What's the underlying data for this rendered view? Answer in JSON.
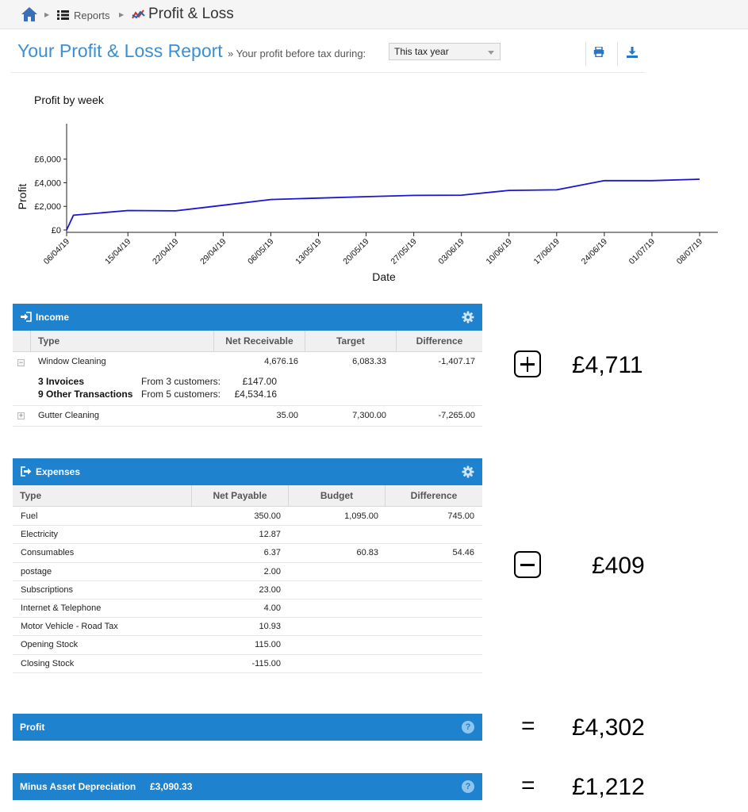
{
  "breadcrumb": {
    "home_icon": "home-icon",
    "reports_icon": "list-icon",
    "reports_label": "Reports",
    "page_icon": "chart-line-icon",
    "page_title": "Profit & Loss"
  },
  "header": {
    "title": "Your Profit & Loss Report",
    "subtitle": "» Your profit before tax during:",
    "period_select": "This tax year",
    "print_icon": "print-icon",
    "download_icon": "download-icon"
  },
  "chart_data": {
    "type": "line",
    "title": "Profit by week",
    "xlabel": "Date",
    "ylabel": "Profit",
    "ytick_labels": [
      "£0",
      "£2,000",
      "£4,000",
      "£6,000"
    ],
    "ylim": [
      -200,
      9000
    ],
    "grid": false,
    "categories": [
      "06/04/19",
      "15/04/19",
      "22/04/19",
      "29/04/19",
      "06/05/19",
      "13/05/19",
      "20/05/19",
      "27/05/19",
      "03/06/19",
      "10/06/19",
      "17/06/19",
      "24/06/19",
      "01/07/19",
      "08/07/19"
    ],
    "x_days": [
      0,
      9,
      16,
      23,
      30,
      37,
      44,
      51,
      58,
      65,
      72,
      79,
      86,
      93
    ],
    "series": [
      {
        "color": "#1a14d6",
        "points": [
          [
            0,
            0
          ],
          [
            1,
            1250
          ],
          [
            9,
            1650
          ],
          [
            16,
            1620
          ],
          [
            23,
            2100
          ],
          [
            30,
            2580
          ],
          [
            37,
            2700
          ],
          [
            44,
            2820
          ],
          [
            51,
            2930
          ],
          [
            58,
            2950
          ],
          [
            65,
            3350
          ],
          [
            72,
            3400
          ],
          [
            79,
            4180
          ],
          [
            86,
            4180
          ],
          [
            93,
            4300
          ]
        ]
      }
    ]
  },
  "income": {
    "title": "Income",
    "icon": "sign-in-icon",
    "settings_icon": "gear-icon",
    "columns": [
      "Type",
      "Net Receivable",
      "Target",
      "Difference"
    ],
    "rows": [
      {
        "type": "Window Cleaning",
        "net": "4,676.16",
        "target": "6,083.33",
        "diff": "-1,407.17",
        "expander": "−"
      },
      {
        "type": "Gutter Cleaning",
        "net": "35.00",
        "target": "7,300.00",
        "diff": "-7,265.00",
        "expander": "+"
      }
    ],
    "details": [
      {
        "label": "3 Invoices",
        "from": "From 3 customers:",
        "amount": "£147.00"
      },
      {
        "label": "9 Other Transactions",
        "from": "From 5 customers:",
        "amount": "£4,534.16"
      }
    ]
  },
  "expenses": {
    "title": "Expenses",
    "icon": "sign-out-icon",
    "settings_icon": "gear-icon",
    "columns": [
      "Type",
      "Net Payable",
      "Budget",
      "Difference"
    ],
    "rows": [
      {
        "type": "Fuel",
        "net": "350.00",
        "budget": "1,095.00",
        "diff": "745.00"
      },
      {
        "type": "Electricity",
        "net": "12.87",
        "budget": "",
        "diff": ""
      },
      {
        "type": "Consumables",
        "net": "6.37",
        "budget": "60.83",
        "diff": "54.46"
      },
      {
        "type": "postage",
        "net": "2.00",
        "budget": "",
        "diff": ""
      },
      {
        "type": "Subscriptions",
        "net": "23.00",
        "budget": "",
        "diff": ""
      },
      {
        "type": "Internet & Telephone",
        "net": "4.00",
        "budget": "",
        "diff": ""
      },
      {
        "type": "Motor Vehicle - Road Tax",
        "net": "10.93",
        "budget": "",
        "diff": ""
      },
      {
        "type": "Opening Stock",
        "net": "115.00",
        "budget": "",
        "diff": ""
      },
      {
        "type": "Closing Stock",
        "net": "-115.00",
        "budget": "",
        "diff": ""
      }
    ]
  },
  "profit_bar": {
    "title": "Profit",
    "help_icon": "question-icon",
    "help_glyph": "?"
  },
  "depreciation_bar": {
    "title": "Minus Asset Depreciation",
    "amount": "£3,090.33",
    "help_icon": "question-icon",
    "help_glyph": "?"
  },
  "annotations": {
    "income_total": "£4,711",
    "income_symbol": "plus-box-icon",
    "expenses_total": "£409",
    "expenses_symbol": "minus-box-icon",
    "equals": "=",
    "profit_total": "£4,302",
    "final_total": "£1,212"
  }
}
